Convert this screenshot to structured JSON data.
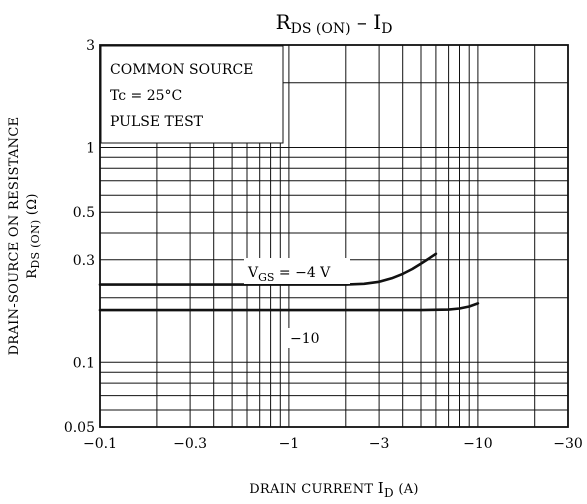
{
  "chart_data": {
    "type": "line",
    "title_main": "R",
    "title_main_sub": "DS (ON)",
    "title_sep": "–",
    "title_var": "I",
    "title_var_sub": "D",
    "xlabel": "DRAIN CURRENT",
    "xlabel_var": "I",
    "xlabel_var_sub": "D",
    "xlabel_unit": "(A)",
    "ylabel_line1": "DRAIN-SOURCE ON RESISTANCE",
    "ylabel_line2_var": "R",
    "ylabel_line2_sub": "DS (ON)",
    "ylabel_line2_unit": "(Ω)",
    "x_scale": "log",
    "y_scale": "log",
    "xlim": [
      -0.1,
      -30
    ],
    "ylim": [
      0.05,
      3
    ],
    "x_ticks": [
      {
        "value": -0.1,
        "label": "−0.1"
      },
      {
        "value": -0.3,
        "label": "−0.3"
      },
      {
        "value": -1,
        "label": "−1"
      },
      {
        "value": -3,
        "label": "−3"
      },
      {
        "value": -10,
        "label": "−10"
      },
      {
        "value": -30,
        "label": "−30"
      }
    ],
    "y_ticks": [
      {
        "value": 0.05,
        "label": "0.05"
      },
      {
        "value": 0.1,
        "label": "0.1"
      },
      {
        "value": 0.3,
        "label": "0.3"
      },
      {
        "value": 0.5,
        "label": "0.5"
      },
      {
        "value": 1,
        "label": "1"
      },
      {
        "value": 3,
        "label": "3"
      }
    ],
    "x_gridlines": [
      -0.1,
      -0.2,
      -0.3,
      -0.4,
      -0.5,
      -0.6,
      -0.7,
      -0.8,
      -0.9,
      -1,
      -2,
      -3,
      -4,
      -5,
      -6,
      -7,
      -8,
      -9,
      -10,
      -20,
      -30
    ],
    "y_gridlines": [
      0.05,
      0.06,
      0.07,
      0.08,
      0.09,
      0.1,
      0.2,
      0.3,
      0.4,
      0.5,
      0.6,
      0.7,
      0.8,
      0.9,
      1,
      2,
      3
    ],
    "grid": true,
    "conditions": [
      "COMMON SOURCE",
      "Tc = 25°C",
      "PULSE TEST"
    ],
    "series": [
      {
        "name": "VGS = −4 V",
        "label_var": "V",
        "label_sub": "GS",
        "label_rest": " = −4 V",
        "x": [
          -0.1,
          -0.3,
          -1,
          -2,
          -2.5,
          -3,
          -3.5,
          -4,
          -4.5,
          -5,
          -5.5,
          -6
        ],
        "y": [
          0.23,
          0.23,
          0.23,
          0.23,
          0.232,
          0.237,
          0.246,
          0.258,
          0.272,
          0.288,
          0.304,
          0.32
        ]
      },
      {
        "name": "−10",
        "label_var": "",
        "label_sub": "",
        "label_rest": "−10",
        "x": [
          -0.1,
          -0.3,
          -1,
          -3,
          -5,
          -7,
          -8,
          -9,
          -10
        ],
        "y": [
          0.175,
          0.175,
          0.175,
          0.175,
          0.175,
          0.176,
          0.178,
          0.182,
          0.188
        ]
      }
    ]
  }
}
